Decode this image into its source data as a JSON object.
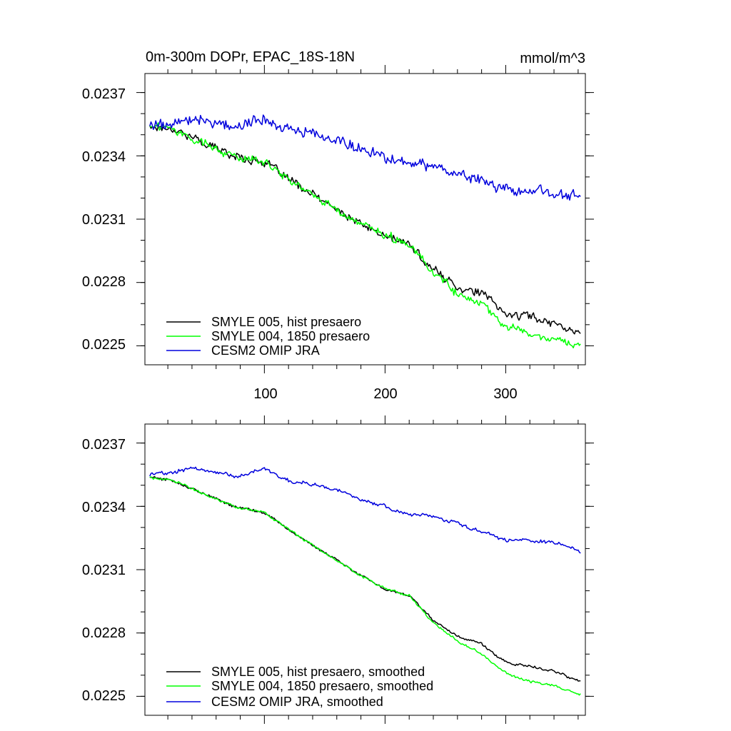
{
  "chart_data": [
    {
      "type": "line",
      "title": "0m-300m DOPr, EPAC_18S-18N",
      "units": "mmol/m^3",
      "xlabel": "",
      "ylabel": "",
      "xlim": [
        1,
        366
      ],
      "ylim": [
        0.02241,
        0.02379
      ],
      "x_ticks": [
        100,
        200,
        300
      ],
      "x_tick_labels": [
        "100",
        "200",
        "300"
      ],
      "y_ticks": [
        0.0225,
        0.0228,
        0.0231,
        0.0234,
        0.0237
      ],
      "y_tick_labels": [
        "0.0225",
        "0.0228",
        "0.0231",
        "0.0234",
        "0.0237"
      ],
      "legend_position": "bottom-left",
      "series": [
        {
          "name": "SMYLE 005, hist presaero",
          "color": "#000000",
          "points": [
            [
              5,
              0.02354
            ],
            [
              25,
              0.02353
            ],
            [
              50,
              0.02346
            ],
            [
              75,
              0.0234
            ],
            [
              100,
              0.02337
            ],
            [
              125,
              0.02327
            ],
            [
              150,
              0.02318
            ],
            [
              175,
              0.02309
            ],
            [
              200,
              0.02302
            ],
            [
              220,
              0.02298
            ],
            [
              240,
              0.02286
            ],
            [
              260,
              0.02278
            ],
            [
              280,
              0.02275
            ],
            [
              300,
              0.02265
            ],
            [
              320,
              0.02264
            ],
            [
              340,
              0.02261
            ],
            [
              362,
              0.02256
            ]
          ],
          "noise": 2.5e-05
        },
        {
          "name": "SMYLE 004, 1850 presaero",
          "color": "#00ff00",
          "points": [
            [
              5,
              0.02354
            ],
            [
              25,
              0.02353
            ],
            [
              50,
              0.02346
            ],
            [
              75,
              0.0234
            ],
            [
              100,
              0.02337
            ],
            [
              125,
              0.02327
            ],
            [
              150,
              0.02318
            ],
            [
              175,
              0.02309
            ],
            [
              200,
              0.02302
            ],
            [
              220,
              0.02298
            ],
            [
              240,
              0.02285
            ],
            [
              260,
              0.02275
            ],
            [
              280,
              0.02269
            ],
            [
              300,
              0.0226
            ],
            [
              320,
              0.02256
            ],
            [
              340,
              0.02254
            ],
            [
              362,
              0.0225
            ]
          ],
          "noise": 2.5e-05
        },
        {
          "name": "CESM2 OMIP JRA",
          "color": "#0000dd",
          "points": [
            [
              5,
              0.02355
            ],
            [
              20,
              0.02355
            ],
            [
              40,
              0.02358
            ],
            [
              60,
              0.02356
            ],
            [
              80,
              0.02354
            ],
            [
              100,
              0.02358
            ],
            [
              120,
              0.02352
            ],
            [
              140,
              0.0235
            ],
            [
              160,
              0.02348
            ],
            [
              180,
              0.02343
            ],
            [
              200,
              0.0234
            ],
            [
              220,
              0.02336
            ],
            [
              240,
              0.02335
            ],
            [
              260,
              0.02332
            ],
            [
              280,
              0.02328
            ],
            [
              300,
              0.02324
            ],
            [
              320,
              0.02323
            ],
            [
              340,
              0.02322
            ],
            [
              362,
              0.0232
            ]
          ],
          "noise": 3.5e-05
        }
      ]
    },
    {
      "type": "line",
      "title": "",
      "xlabel": "",
      "ylabel": "",
      "xlim": [
        1,
        366
      ],
      "ylim": [
        0.02241,
        0.02379
      ],
      "x_ticks": [
        100,
        200,
        300
      ],
      "y_ticks": [
        0.0225,
        0.0228,
        0.0231,
        0.0234,
        0.0237
      ],
      "y_tick_labels": [
        "0.0225",
        "0.0228",
        "0.0231",
        "0.0234",
        "0.0237"
      ],
      "legend_position": "bottom-left",
      "series": [
        {
          "name": "SMYLE 005, hist presaero, smoothed",
          "color": "#000000",
          "points": [
            [
              5,
              0.02354
            ],
            [
              25,
              0.02352
            ],
            [
              50,
              0.02346
            ],
            [
              75,
              0.0234
            ],
            [
              100,
              0.02337
            ],
            [
              125,
              0.02327
            ],
            [
              150,
              0.02318
            ],
            [
              175,
              0.02309
            ],
            [
              200,
              0.02301
            ],
            [
              220,
              0.02298
            ],
            [
              240,
              0.02286
            ],
            [
              260,
              0.02278
            ],
            [
              280,
              0.02275
            ],
            [
              300,
              0.02266
            ],
            [
              320,
              0.02264
            ],
            [
              340,
              0.02262
            ],
            [
              362,
              0.02257
            ]
          ],
          "noise": 8e-06
        },
        {
          "name": "SMYLE 004, 1850 presaero, smoothed",
          "color": "#00ff00",
          "points": [
            [
              5,
              0.02354
            ],
            [
              25,
              0.02352
            ],
            [
              50,
              0.02346
            ],
            [
              75,
              0.0234
            ],
            [
              100,
              0.02337
            ],
            [
              125,
              0.02327
            ],
            [
              150,
              0.02318
            ],
            [
              175,
              0.02309
            ],
            [
              200,
              0.02301
            ],
            [
              220,
              0.02298
            ],
            [
              240,
              0.02285
            ],
            [
              260,
              0.02276
            ],
            [
              280,
              0.0227
            ],
            [
              300,
              0.02261
            ],
            [
              320,
              0.02257
            ],
            [
              340,
              0.02255
            ],
            [
              362,
              0.02251
            ]
          ],
          "noise": 8e-06
        },
        {
          "name": "CESM2 OMIP JRA, smoothed",
          "color": "#0000dd",
          "points": [
            [
              5,
              0.02355
            ],
            [
              20,
              0.02356
            ],
            [
              40,
              0.02358
            ],
            [
              60,
              0.02356
            ],
            [
              80,
              0.02354
            ],
            [
              100,
              0.02358
            ],
            [
              120,
              0.02352
            ],
            [
              140,
              0.0235
            ],
            [
              160,
              0.02348
            ],
            [
              180,
              0.02343
            ],
            [
              200,
              0.0234
            ],
            [
              220,
              0.02336
            ],
            [
              240,
              0.02335
            ],
            [
              260,
              0.02332
            ],
            [
              280,
              0.02328
            ],
            [
              300,
              0.02324
            ],
            [
              320,
              0.02324
            ],
            [
              340,
              0.02323
            ],
            [
              362,
              0.02319
            ]
          ],
          "noise": 1.2e-05
        }
      ]
    }
  ]
}
